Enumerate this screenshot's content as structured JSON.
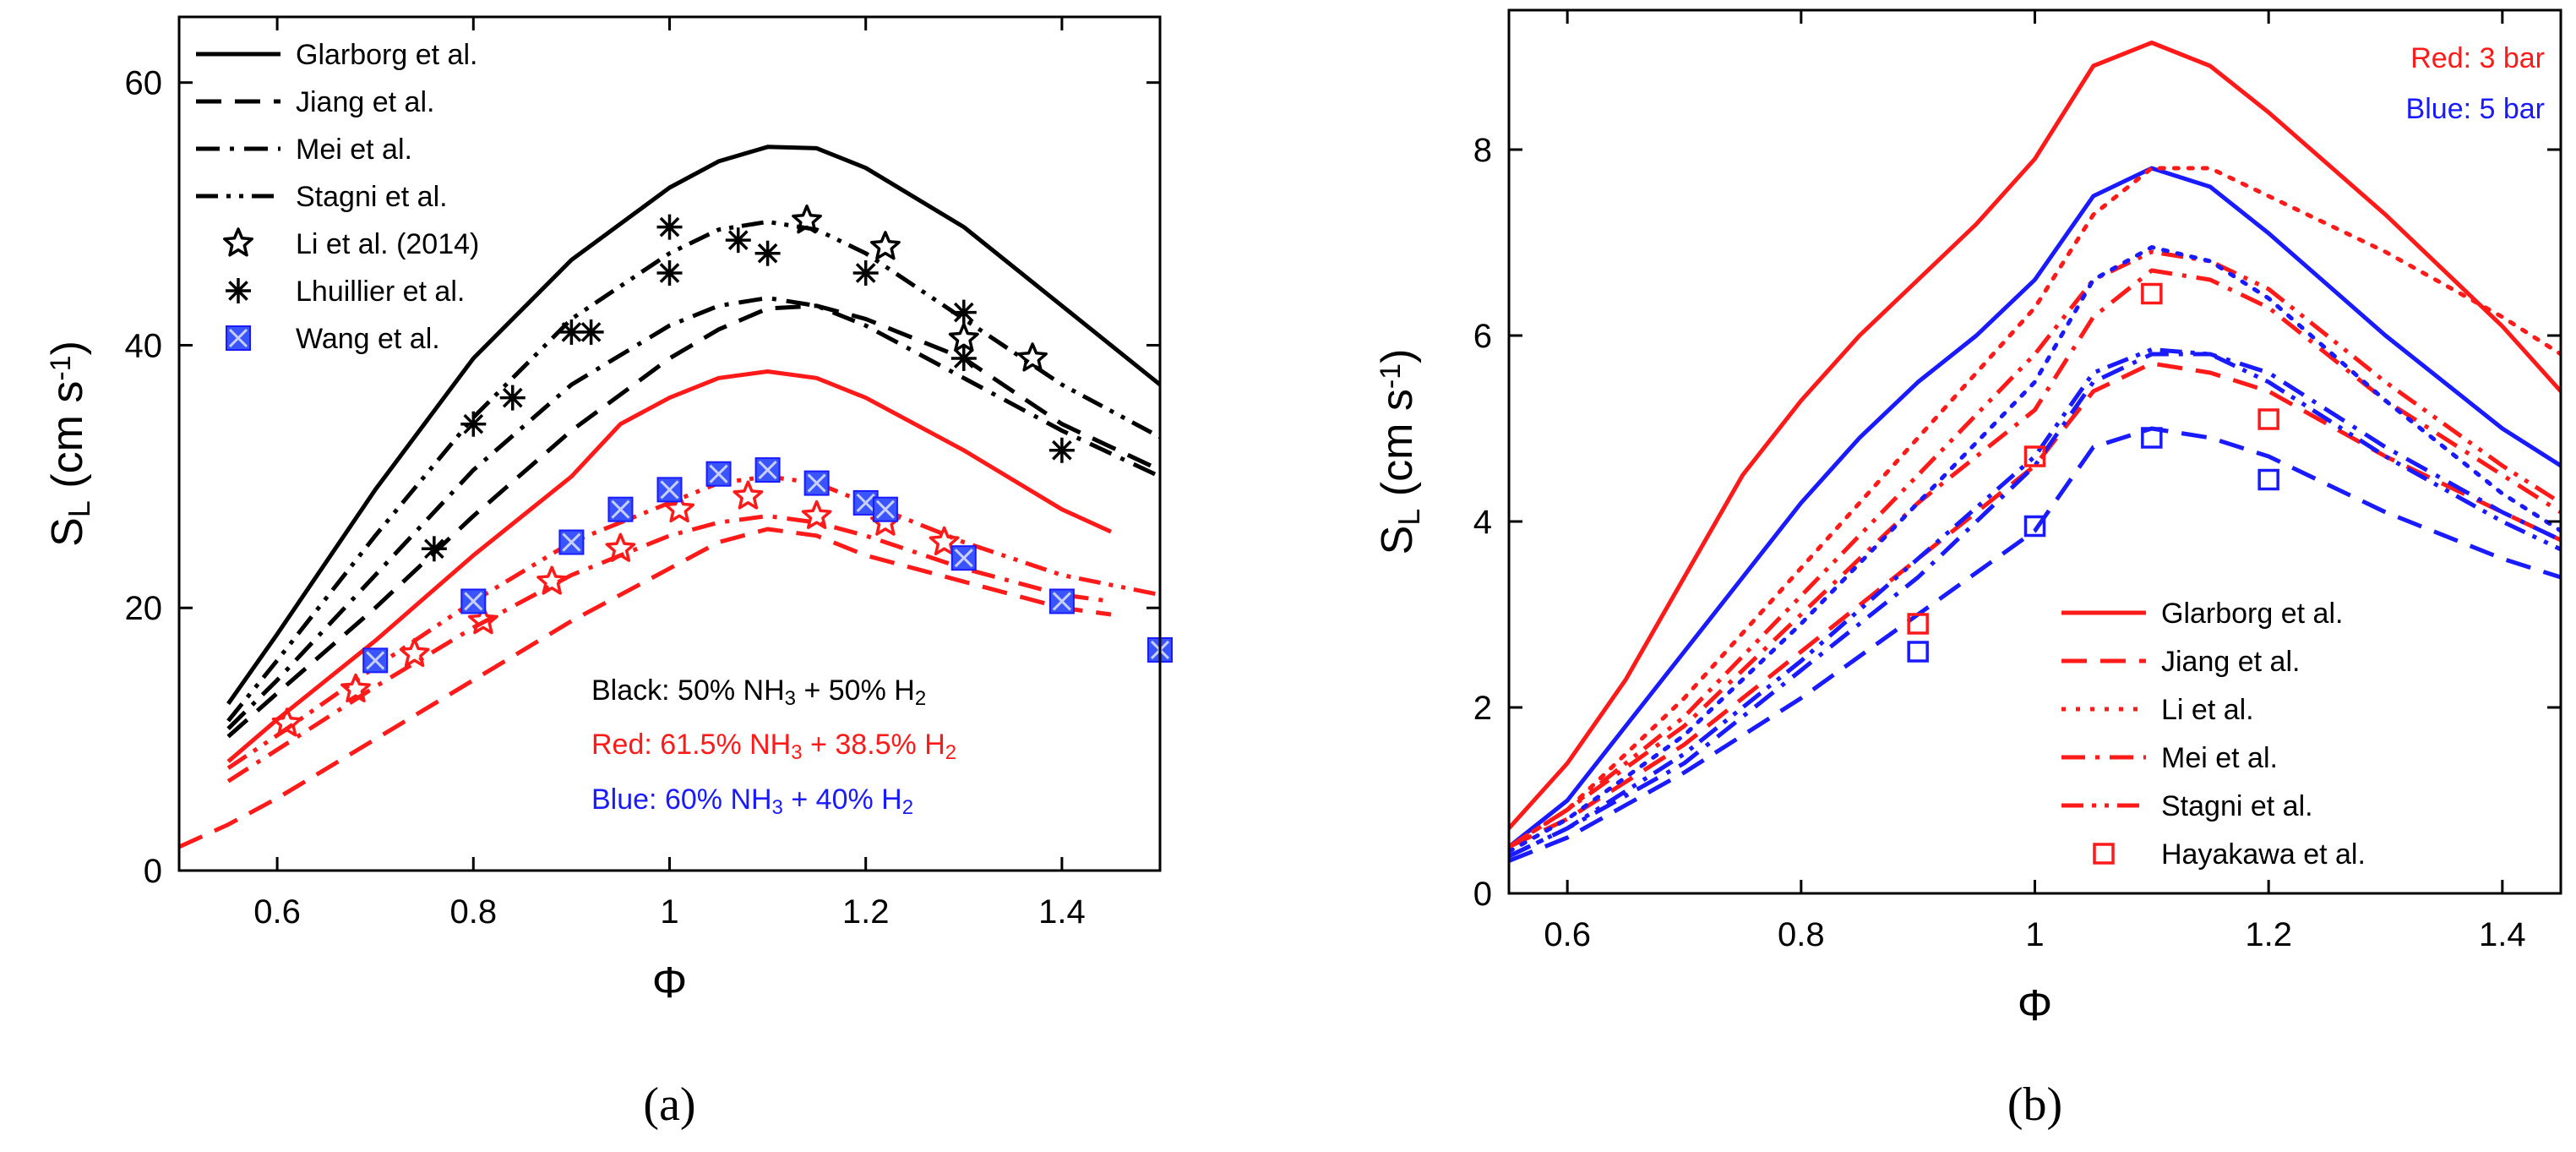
{
  "chart_data": [
    {
      "type": "line",
      "panel_label": "(a)",
      "xlabel": "Φ",
      "ylabel_main": "S",
      "ylabel_sub": "L",
      "ylabel_rest": " (cm s",
      "ylabel_sup": "-1",
      "ylabel_end": ")",
      "xlim": [
        0.5,
        1.5
      ],
      "ylim": [
        0,
        65
      ],
      "xticks": [
        0.6,
        0.8,
        1.0,
        1.2,
        1.4
      ],
      "xtick_labels": [
        "0.6",
        "0.8",
        "1",
        "1.2",
        "1.4"
      ],
      "yticks": [
        0,
        20,
        40,
        60
      ],
      "ytick_labels": [
        "0",
        "20",
        "40",
        "60"
      ],
      "colors": {
        "black": "#000000",
        "red": "#ff1a1a",
        "blue": "#1a1aff"
      },
      "legend": [
        {
          "label": "Glarborg et al.",
          "style": "solid"
        },
        {
          "label": "Jiang et al.",
          "style": "dash"
        },
        {
          "label": "Mei et al.",
          "style": "dashdot"
        },
        {
          "label": "Stagni et al.",
          "style": "dashdotdot"
        },
        {
          "label": "Li et al. (2014)",
          "style": "star"
        },
        {
          "label": "Lhuillier et al.",
          "style": "asterisk"
        },
        {
          "label": "Wang et al.",
          "style": "bluesquare"
        }
      ],
      "notes": [
        {
          "color": "black",
          "parts": [
            "Black: 50% NH",
            "3",
            " + 50% H",
            "2"
          ]
        },
        {
          "color": "red",
          "parts": [
            "Red: 61.5% NH",
            "3",
            " + 38.5% H",
            "2"
          ]
        },
        {
          "color": "blue",
          "parts": [
            "Blue: 60% NH",
            "3",
            " + 40% H",
            "2"
          ]
        }
      ],
      "series": [
        {
          "model": "Glarborg",
          "color": "black",
          "style": "solid",
          "x": [
            0.55,
            0.6,
            0.7,
            0.8,
            0.9,
            1.0,
            1.05,
            1.1,
            1.15,
            1.2,
            1.3,
            1.4,
            1.5
          ],
          "y": [
            12.7,
            18.0,
            29.0,
            39.0,
            46.5,
            52.0,
            54.0,
            55.1,
            55.0,
            53.5,
            49.0,
            43.0,
            37.0
          ]
        },
        {
          "model": "Stagni",
          "color": "black",
          "style": "dashdotdot",
          "x": [
            0.55,
            0.6,
            0.7,
            0.8,
            0.9,
            1.0,
            1.05,
            1.1,
            1.15,
            1.2,
            1.3,
            1.4,
            1.5
          ],
          "y": [
            11.4,
            16.0,
            25.5,
            34.5,
            42.0,
            47.0,
            48.8,
            49.4,
            48.8,
            47.0,
            42.0,
            37.0,
            33.0
          ]
        },
        {
          "model": "Mei",
          "color": "black",
          "style": "dashdot",
          "x": [
            0.55,
            0.6,
            0.7,
            0.8,
            0.9,
            1.0,
            1.05,
            1.1,
            1.15,
            1.2,
            1.3,
            1.4,
            1.5
          ],
          "y": [
            10.8,
            14.5,
            22.5,
            30.5,
            37.0,
            41.5,
            43.0,
            43.6,
            43.0,
            41.5,
            37.5,
            33.5,
            30.0
          ]
        },
        {
          "model": "Jiang",
          "color": "black",
          "style": "dash",
          "x": [
            0.55,
            0.6,
            0.7,
            0.8,
            0.9,
            1.0,
            1.05,
            1.1,
            1.15,
            1.2,
            1.3,
            1.4,
            1.5
          ],
          "y": [
            10.2,
            13.5,
            20.0,
            27.0,
            33.5,
            39.0,
            41.2,
            42.8,
            43.0,
            42.0,
            39.0,
            34.0,
            30.5
          ]
        },
        {
          "model": "Glarborg",
          "color": "red",
          "style": "solid",
          "x": [
            0.55,
            0.6,
            0.7,
            0.8,
            0.9,
            0.95,
            1.0,
            1.05,
            1.1,
            1.15,
            1.2,
            1.3,
            1.4,
            1.45
          ],
          "y": [
            8.3,
            11.5,
            17.5,
            24.0,
            30.0,
            34.0,
            36.0,
            37.5,
            38.0,
            37.5,
            36.0,
            32.0,
            27.5,
            25.8
          ]
        },
        {
          "model": "Stagni",
          "color": "red",
          "style": "dashdotdot",
          "x": [
            0.55,
            0.6,
            0.7,
            0.8,
            0.9,
            1.0,
            1.05,
            1.1,
            1.15,
            1.2,
            1.3,
            1.4,
            1.5
          ],
          "y": [
            7.8,
            10.3,
            15.5,
            20.5,
            25.0,
            28.0,
            29.5,
            30.0,
            29.5,
            28.0,
            25.0,
            22.5,
            21.0
          ]
        },
        {
          "model": "Mei",
          "color": "red",
          "style": "dashdot",
          "x": [
            0.55,
            0.6,
            0.7,
            0.8,
            0.9,
            1.0,
            1.05,
            1.1,
            1.15,
            1.2,
            1.3,
            1.4,
            1.45
          ],
          "y": [
            6.8,
            9.2,
            14.0,
            18.5,
            22.5,
            25.5,
            26.5,
            27.0,
            26.5,
            25.5,
            23.0,
            21.0,
            20.5
          ]
        },
        {
          "model": "Jiang",
          "color": "red",
          "style": "dash",
          "x": [
            0.5,
            0.55,
            0.6,
            0.7,
            0.8,
            0.9,
            1.0,
            1.05,
            1.1,
            1.15,
            1.2,
            1.3,
            1.4,
            1.45
          ],
          "y": [
            1.8,
            3.5,
            5.5,
            10.0,
            14.5,
            19.0,
            23.0,
            25.0,
            26.0,
            25.5,
            24.0,
            22.0,
            20.0,
            19.5
          ]
        }
      ],
      "markers": [
        {
          "dataset": "Lhuillier",
          "color": "black",
          "shape": "asterisk",
          "x": [
            0.76,
            0.8,
            0.84,
            0.9,
            0.92,
            1.0,
            1.0,
            1.07,
            1.1,
            1.2,
            1.3,
            1.3,
            1.4
          ],
          "y": [
            24.5,
            34.0,
            36.0,
            41.0,
            41.0,
            45.5,
            49.0,
            48.0,
            47.0,
            45.5,
            42.5,
            39.0,
            32.0
          ]
        },
        {
          "dataset": "Li (2014)",
          "color": "black",
          "shape": "star",
          "x": [
            1.14,
            1.22,
            1.3,
            1.37
          ],
          "y": [
            49.5,
            47.5,
            40.5,
            39.0
          ]
        },
        {
          "dataset": "Li (2014)",
          "color": "red",
          "shape": "star",
          "x": [
            0.61,
            0.68,
            0.74,
            0.81,
            0.88,
            0.95,
            1.01,
            1.08,
            1.15,
            1.22,
            1.28
          ],
          "y": [
            11.2,
            13.8,
            16.5,
            19.0,
            22.0,
            24.5,
            27.5,
            28.5,
            27.0,
            26.5,
            25.0
          ]
        },
        {
          "dataset": "Wang",
          "color": "blue",
          "shape": "bluesquare",
          "x": [
            0.7,
            0.8,
            0.9,
            0.95,
            1.0,
            1.05,
            1.1,
            1.15,
            1.2,
            1.22,
            1.3,
            1.4,
            1.5
          ],
          "y": [
            16.0,
            20.5,
            25.0,
            27.5,
            29.0,
            30.2,
            30.5,
            29.5,
            28.0,
            27.5,
            23.8,
            20.5,
            16.8
          ]
        }
      ]
    },
    {
      "type": "line",
      "panel_label": "(b)",
      "xlabel": "Φ",
      "ylabel_main": "S",
      "ylabel_sub": "L",
      "ylabel_rest": " (cm s",
      "ylabel_sup": "-1",
      "ylabel_end": ")",
      "xlim": [
        0.55,
        1.45
      ],
      "ylim": [
        0,
        9.5
      ],
      "xticks": [
        0.6,
        0.8,
        1.0,
        1.2,
        1.4
      ],
      "xtick_labels": [
        "0.6",
        "0.8",
        "1",
        "1.2",
        "1.4"
      ],
      "yticks": [
        0,
        2,
        4,
        6,
        8
      ],
      "ytick_labels": [
        "0",
        "2",
        "4",
        "6",
        "8"
      ],
      "colors": {
        "red": "#ff1a1a",
        "blue": "#1a1aff"
      },
      "legend": [
        {
          "label": "Glarborg et al.",
          "style": "solid"
        },
        {
          "label": "Jiang et al.",
          "style": "dash"
        },
        {
          "label": "Li et al.",
          "style": "dot"
        },
        {
          "label": "Mei et al.",
          "style": "dashdot"
        },
        {
          "label": "Stagni et al.",
          "style": "dashdotdot"
        },
        {
          "label": "Hayakawa et al.",
          "style": "square"
        }
      ],
      "notes": [
        {
          "color": "red",
          "parts": [
            "Red: 3 bar"
          ]
        },
        {
          "color": "blue",
          "parts": [
            "Blue: 5 bar"
          ]
        }
      ],
      "series": [
        {
          "model": "Glarborg",
          "color": "red",
          "style": "solid",
          "x": [
            0.55,
            0.6,
            0.65,
            0.7,
            0.75,
            0.8,
            0.85,
            0.9,
            0.95,
            1.0,
            1.05,
            1.1,
            1.15,
            1.2,
            1.3,
            1.4,
            1.45
          ],
          "y": [
            0.7,
            1.4,
            2.3,
            3.4,
            4.5,
            5.3,
            6.0,
            6.6,
            7.2,
            7.9,
            8.9,
            9.15,
            8.9,
            8.4,
            7.3,
            6.1,
            5.4
          ]
        },
        {
          "model": "Glarborg",
          "color": "blue",
          "style": "solid",
          "x": [
            0.55,
            0.6,
            0.65,
            0.7,
            0.75,
            0.8,
            0.85,
            0.9,
            0.95,
            1.0,
            1.05,
            1.1,
            1.15,
            1.2,
            1.3,
            1.4,
            1.45
          ],
          "y": [
            0.5,
            1.0,
            1.8,
            2.6,
            3.4,
            4.2,
            4.9,
            5.5,
            6.0,
            6.6,
            7.5,
            7.8,
            7.6,
            7.1,
            6.0,
            5.0,
            4.6
          ]
        },
        {
          "model": "Li",
          "color": "red",
          "style": "dot",
          "x": [
            0.55,
            0.6,
            0.7,
            0.8,
            0.9,
            1.0,
            1.05,
            1.1,
            1.15,
            1.2,
            1.3,
            1.4,
            1.45
          ],
          "y": [
            0.5,
            0.9,
            2.1,
            3.5,
            4.9,
            6.3,
            7.3,
            7.8,
            7.8,
            7.5,
            6.9,
            6.2,
            5.8
          ]
        },
        {
          "model": "Stagni",
          "color": "red",
          "style": "dashdotdot",
          "x": [
            0.55,
            0.6,
            0.7,
            0.8,
            0.9,
            1.0,
            1.05,
            1.1,
            1.15,
            1.2,
            1.3,
            1.4,
            1.45
          ],
          "y": [
            0.5,
            0.9,
            1.9,
            3.2,
            4.5,
            5.8,
            6.6,
            6.9,
            6.8,
            6.5,
            5.5,
            4.6,
            4.2
          ]
        },
        {
          "model": "Mei",
          "color": "red",
          "style": "dashdot",
          "x": [
            0.55,
            0.6,
            0.7,
            0.8,
            0.9,
            1.0,
            1.05,
            1.1,
            1.15,
            1.2,
            1.3,
            1.4,
            1.45
          ],
          "y": [
            0.5,
            0.9,
            1.8,
            3.0,
            4.2,
            5.2,
            6.2,
            6.7,
            6.6,
            6.3,
            5.3,
            4.5,
            4.1
          ]
        },
        {
          "model": "Jiang",
          "color": "red",
          "style": "dash",
          "x": [
            0.55,
            0.6,
            0.7,
            0.8,
            0.9,
            1.0,
            1.05,
            1.1,
            1.15,
            1.2,
            1.3,
            1.4,
            1.45
          ],
          "y": [
            0.5,
            0.8,
            1.6,
            2.6,
            3.6,
            4.6,
            5.4,
            5.7,
            5.6,
            5.4,
            4.7,
            4.1,
            3.8
          ]
        },
        {
          "model": "Li",
          "color": "blue",
          "style": "dot",
          "x": [
            0.55,
            0.6,
            0.7,
            0.8,
            0.9,
            1.0,
            1.05,
            1.1,
            1.15,
            1.2,
            1.3,
            1.4,
            1.45
          ],
          "y": [
            0.45,
            0.8,
            1.7,
            2.9,
            4.2,
            5.5,
            6.6,
            6.95,
            6.8,
            6.4,
            5.3,
            4.3,
            3.9
          ]
        },
        {
          "model": "Stagni",
          "color": "blue",
          "style": "dashdotdot",
          "x": [
            0.55,
            0.6,
            0.7,
            0.8,
            0.9,
            1.0,
            1.05,
            1.1,
            1.15,
            1.2,
            1.3,
            1.4,
            1.45
          ],
          "y": [
            0.4,
            0.7,
            1.5,
            2.5,
            3.6,
            4.7,
            5.6,
            5.85,
            5.8,
            5.5,
            4.7,
            4.0,
            3.7
          ]
        },
        {
          "model": "Mei",
          "color": "blue",
          "style": "dashdot",
          "x": [
            0.55,
            0.6,
            0.7,
            0.8,
            0.9,
            1.0,
            1.05,
            1.1,
            1.15,
            1.2,
            1.3,
            1.4,
            1.45
          ],
          "y": [
            0.4,
            0.7,
            1.4,
            2.4,
            3.4,
            4.6,
            5.5,
            5.8,
            5.8,
            5.6,
            4.8,
            4.1,
            3.8
          ]
        },
        {
          "model": "Jiang",
          "color": "blue",
          "style": "dash",
          "x": [
            0.55,
            0.6,
            0.7,
            0.8,
            0.9,
            1.0,
            1.05,
            1.1,
            1.15,
            1.2,
            1.3,
            1.4,
            1.45
          ],
          "y": [
            0.35,
            0.6,
            1.3,
            2.1,
            3.0,
            3.9,
            4.8,
            5.0,
            4.9,
            4.7,
            4.1,
            3.6,
            3.4
          ]
        }
      ],
      "markers": [
        {
          "dataset": "Hayakawa",
          "color": "red",
          "shape": "square",
          "x": [
            0.9,
            1.0,
            1.1,
            1.2
          ],
          "y": [
            2.9,
            4.7,
            6.45,
            5.1
          ]
        },
        {
          "dataset": "Hayakawa",
          "color": "blue",
          "shape": "square",
          "x": [
            0.9,
            1.0,
            1.1,
            1.2
          ],
          "y": [
            2.6,
            3.95,
            4.9,
            4.45
          ]
        }
      ]
    }
  ]
}
